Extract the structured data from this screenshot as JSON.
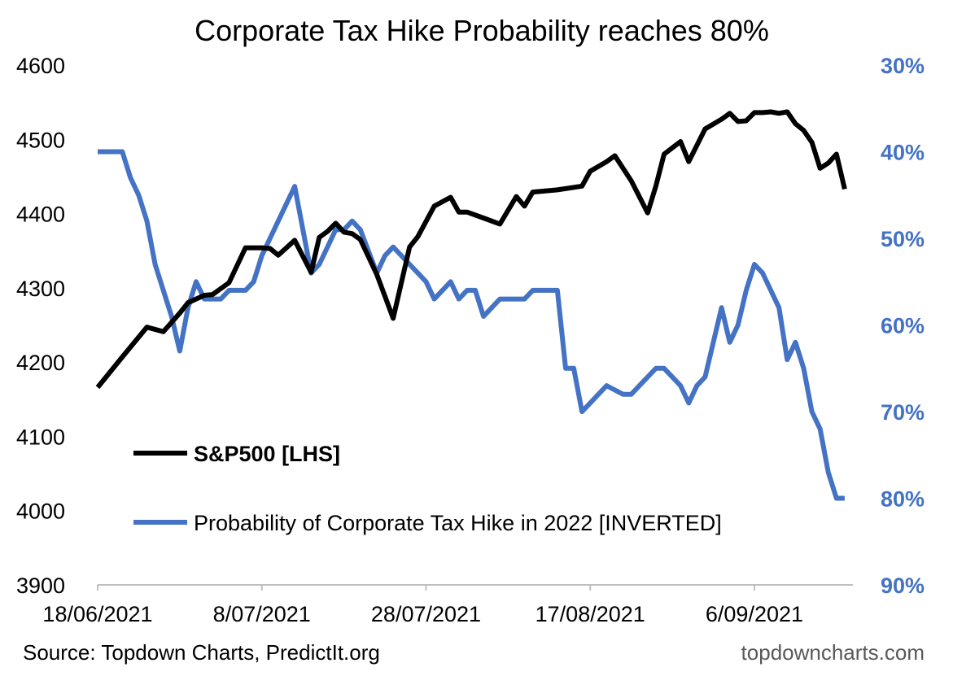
{
  "chart_data": {
    "type": "line",
    "title": "Corporate Tax Hike Probability reaches 80%",
    "x_tick_labels": [
      "18/06/2021",
      "8/07/2021",
      "28/07/2021",
      "17/08/2021",
      "6/09/2021"
    ],
    "x_range": [
      0,
      92
    ],
    "x_tick_positions": [
      0,
      20,
      40,
      60,
      80
    ],
    "y_left": {
      "range": [
        3900,
        4600
      ],
      "ticks": [
        3900,
        4000,
        4100,
        4200,
        4300,
        4400,
        4500,
        4600
      ],
      "tick_labels": [
        "3900",
        "4000",
        "4100",
        "4200",
        "4300",
        "4400",
        "4500",
        "4600"
      ]
    },
    "y_right": {
      "range": [
        30,
        90
      ],
      "inverted": true,
      "ticks": [
        30,
        40,
        50,
        60,
        70,
        80,
        90
      ],
      "tick_labels": [
        "30%",
        "40%",
        "50%",
        "60%",
        "70%",
        "80%",
        "90%"
      ]
    },
    "series": [
      {
        "name": "S&P500 [LHS]",
        "axis": "left",
        "color": "#000000",
        "x": [
          0,
          3,
          6,
          8,
          10,
          11,
          13,
          14,
          16,
          18,
          20,
          21,
          22,
          24,
          26,
          27,
          28,
          29,
          30,
          31,
          32,
          34,
          36,
          38,
          39,
          41,
          43,
          44,
          45,
          47,
          49,
          51,
          52,
          53,
          56,
          59,
          60,
          62,
          63,
          65,
          67,
          68,
          69,
          71,
          72,
          74,
          76,
          77,
          78,
          79,
          80,
          81,
          82,
          83,
          84,
          85,
          86,
          87,
          88,
          89,
          90,
          91
        ],
        "values": [
          4166,
          4207,
          4247,
          4241,
          4266,
          4280,
          4290,
          4291,
          4307,
          4354,
          4354,
          4353,
          4344,
          4364,
          4321,
          4368,
          4376,
          4387,
          4375,
          4373,
          4365,
          4318,
          4259,
          4355,
          4369,
          4410,
          4422,
          4402,
          4402,
          4394,
          4386,
          4423,
          4410,
          4429,
          4432,
          4437,
          4457,
          4470,
          4478,
          4444,
          4401,
          4437,
          4480,
          4497,
          4470,
          4514,
          4527,
          4535,
          4524,
          4525,
          4536,
          4536,
          4537,
          4535,
          4537,
          4521,
          4512,
          4496,
          4461,
          4468,
          4480,
          4433
        ]
      },
      {
        "name": "Probability of Corporate Tax Hike in 2022  [INVERTED]",
        "axis": "right",
        "color": "#4472C4",
        "x": [
          0,
          3,
          4,
          5,
          6,
          7,
          9,
          10,
          11,
          12,
          13,
          14,
          15,
          16,
          18,
          19,
          20,
          21,
          22,
          24,
          26,
          27,
          29,
          30,
          31,
          32,
          34,
          35,
          36,
          38,
          39,
          40,
          41,
          43,
          44,
          45,
          46,
          47,
          48,
          49,
          51,
          52,
          53,
          54,
          56,
          57,
          58,
          59,
          60,
          61,
          62,
          64,
          65,
          66,
          67,
          68,
          69,
          70,
          71,
          72,
          73,
          74,
          75,
          76,
          77,
          78,
          79,
          80,
          81,
          82,
          83,
          84,
          85,
          86,
          87,
          88,
          89,
          90,
          91
        ],
        "values": [
          40,
          40,
          43,
          45,
          48,
          53,
          59,
          63,
          58,
          55,
          57,
          57,
          57,
          56,
          56,
          55,
          52,
          50,
          48,
          44,
          54,
          53,
          49,
          49,
          48,
          49,
          54,
          52,
          51,
          53,
          54,
          55,
          57,
          55,
          57,
          56,
          56,
          59,
          58,
          57,
          57,
          57,
          56,
          56,
          56,
          65,
          65,
          70,
          69,
          68,
          67,
          68,
          68,
          67,
          66,
          65,
          65,
          66,
          67,
          69,
          67,
          66,
          62,
          58,
          62,
          60,
          56,
          53,
          54,
          56,
          58,
          64,
          62,
          65,
          70,
          72,
          77,
          80,
          80
        ]
      }
    ],
    "legend": {
      "position": "bottom-left",
      "bold_first": true
    },
    "source": "Source: Topdown Charts, PredictIt.org",
    "brand": "topdowncharts.com"
  }
}
